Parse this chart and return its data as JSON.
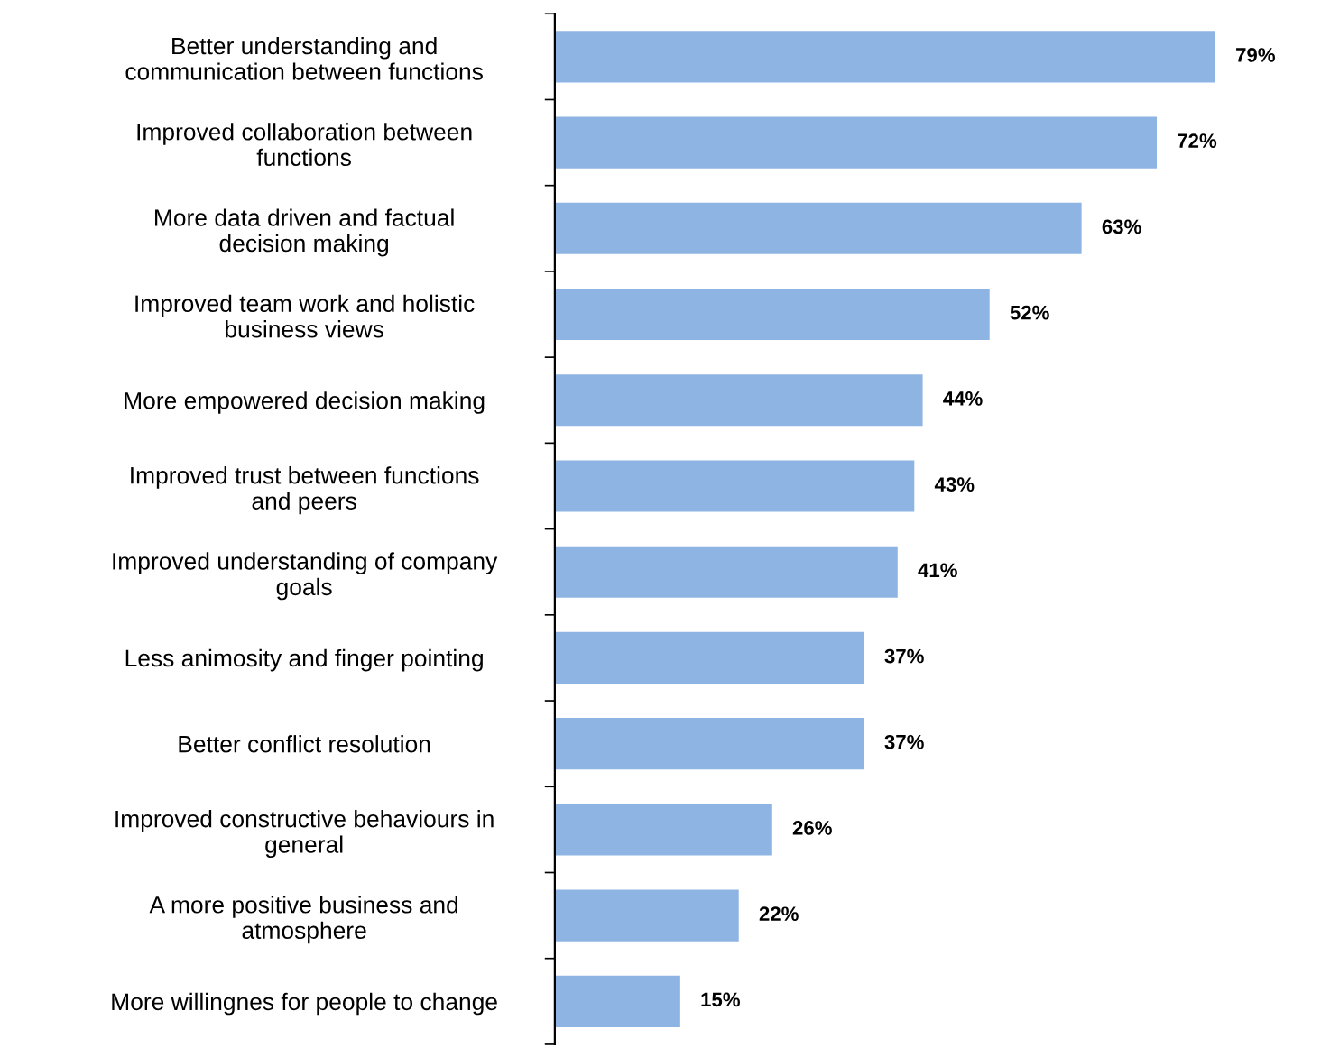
{
  "chart_data": {
    "type": "bar",
    "orientation": "horizontal",
    "categories": [
      "Better understanding and\ncommunication between functions",
      "Improved collaboration between\nfunctions",
      "More data driven and factual\ndecision making",
      "Improved team work and holistic\nbusiness views",
      "More empowered decision making",
      "Improved trust between functions\nand peers",
      "Improved understanding of company\ngoals",
      "Less animosity and finger pointing",
      "Better conflict resolution",
      "Improved constructive behaviours in\ngeneral",
      "A more positive business and\natmosphere",
      "More willingnes for people to change"
    ],
    "values": [
      79,
      72,
      63,
      52,
      44,
      43,
      41,
      37,
      37,
      26,
      22,
      15
    ],
    "value_labels": [
      "79%",
      "72%",
      "63%",
      "52%",
      "44%",
      "43%",
      "41%",
      "37%",
      "37%",
      "26%",
      "22%",
      "15%"
    ],
    "color": "#8eb4e3",
    "tick_labels": "y",
    "grid": false,
    "legend": false
  }
}
